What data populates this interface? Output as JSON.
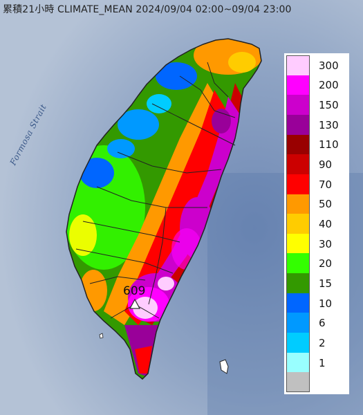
{
  "title": "累積21小時 CLIMATE_MEAN 2024/09/04 02:00~09/04 23:00",
  "strait_label": "Formosa Strait",
  "max_marker": {
    "value": "609"
  },
  "legend": {
    "entries": [
      {
        "label": "300",
        "color": "#ffccff"
      },
      {
        "label": "200",
        "color": "#ff00ff"
      },
      {
        "label": "150",
        "color": "#cc00cc"
      },
      {
        "label": "130",
        "color": "#990099"
      },
      {
        "label": "110",
        "color": "#990000"
      },
      {
        "label": "90",
        "color": "#cc0000"
      },
      {
        "label": "70",
        "color": "#ff0000"
      },
      {
        "label": "50",
        "color": "#ff9900"
      },
      {
        "label": "40",
        "color": "#ffcc00"
      },
      {
        "label": "30",
        "color": "#ffff00"
      },
      {
        "label": "20",
        "color": "#33ff00"
      },
      {
        "label": "15",
        "color": "#339900"
      },
      {
        "label": "10",
        "color": "#0066ff"
      },
      {
        "label": "6",
        "color": "#0099ff"
      },
      {
        "label": "2",
        "color": "#00ccff"
      },
      {
        "label": "1",
        "color": "#99ffff"
      },
      {
        "label": "",
        "color": "#c0c0c0"
      }
    ]
  },
  "colors": {
    "sea": "#aab9cd",
    "sea_deep": "#5a78a8",
    "boundary": "#222222"
  }
}
